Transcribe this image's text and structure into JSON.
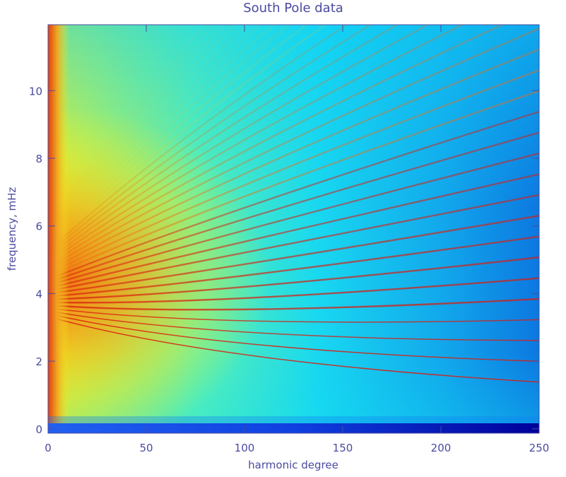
{
  "chart_data": {
    "type": "heatmap",
    "title": "South Pole data",
    "x_label": "harmonic degree",
    "y_label": "frequency, mHz",
    "xlim": [
      0,
      250
    ],
    "xticks": [
      0,
      50,
      100,
      150,
      200,
      250
    ],
    "ylim": [
      -0.13,
      11.95
    ],
    "yticks": [
      0,
      2,
      4,
      6,
      8,
      10
    ],
    "colormap": "jet"
  }
}
